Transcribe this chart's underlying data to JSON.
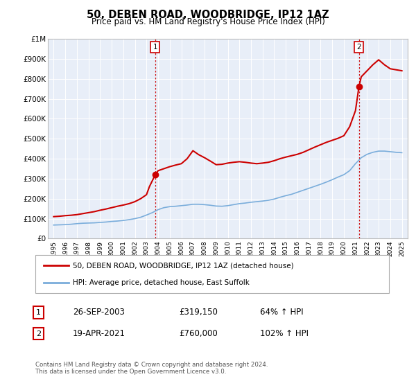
{
  "title": "50, DEBEN ROAD, WOODBRIDGE, IP12 1AZ",
  "subtitle": "Price paid vs. HM Land Registry's House Price Index (HPI)",
  "hpi_label": "HPI: Average price, detached house, East Suffolk",
  "property_label": "50, DEBEN ROAD, WOODBRIDGE, IP12 1AZ (detached house)",
  "transaction1_date": "26-SEP-2003",
  "transaction1_price": "£319,150",
  "transaction1_hpi": "64% ↑ HPI",
  "transaction2_date": "19-APR-2021",
  "transaction2_price": "£760,000",
  "transaction2_hpi": "102% ↑ HPI",
  "footer": "Contains HM Land Registry data © Crown copyright and database right 2024.\nThis data is licensed under the Open Government Licence v3.0.",
  "property_color": "#cc0000",
  "hpi_color": "#7aaddb",
  "vline_color": "#cc0000",
  "plot_bg_color": "#e8eef8",
  "transaction1_x": 2003.75,
  "transaction1_y": 319150,
  "transaction2_x": 2021.3,
  "transaction2_y": 760000,
  "ylim": [
    0,
    1000000
  ],
  "yticks": [
    0,
    100000,
    200000,
    300000,
    400000,
    500000,
    600000,
    700000,
    800000,
    900000,
    1000000
  ],
  "ytick_labels": [
    "£0",
    "£100K",
    "£200K",
    "£300K",
    "£400K",
    "£500K",
    "£600K",
    "£700K",
    "£800K",
    "£900K",
    "£1M"
  ],
  "xlim_min": 1994.5,
  "xlim_max": 2025.5,
  "hpi_x": [
    1995,
    1995.5,
    1996,
    1996.5,
    1997,
    1997.5,
    1998,
    1998.5,
    1999,
    1999.5,
    2000,
    2000.5,
    2001,
    2001.5,
    2002,
    2002.5,
    2003,
    2003.5,
    2004,
    2004.5,
    2005,
    2005.5,
    2006,
    2006.5,
    2007,
    2007.5,
    2008,
    2008.5,
    2009,
    2009.5,
    2010,
    2010.5,
    2011,
    2011.5,
    2012,
    2012.5,
    2013,
    2013.5,
    2014,
    2014.5,
    2015,
    2015.5,
    2016,
    2016.5,
    2017,
    2017.5,
    2018,
    2018.5,
    2019,
    2019.5,
    2020,
    2020.5,
    2021,
    2021.5,
    2022,
    2022.5,
    2023,
    2023.5,
    2024,
    2024.5,
    2025
  ],
  "hpi_y": [
    68000,
    69000,
    70000,
    72000,
    75000,
    77000,
    78000,
    79000,
    81000,
    83000,
    86000,
    88000,
    91000,
    95000,
    100000,
    107000,
    118000,
    130000,
    145000,
    155000,
    160000,
    162000,
    165000,
    168000,
    172000,
    172000,
    170000,
    167000,
    163000,
    162000,
    165000,
    170000,
    175000,
    178000,
    182000,
    185000,
    188000,
    192000,
    198000,
    207000,
    215000,
    222000,
    232000,
    242000,
    252000,
    262000,
    272000,
    283000,
    295000,
    308000,
    320000,
    340000,
    375000,
    405000,
    422000,
    432000,
    438000,
    438000,
    435000,
    432000,
    430000
  ],
  "prop_x": [
    1995,
    1995.5,
    1996,
    1996.5,
    1997,
    1997.5,
    1998,
    1998.5,
    1999,
    1999.5,
    2000,
    2000.5,
    2001,
    2001.5,
    2002,
    2002.5,
    2003,
    2003.25,
    2003.75,
    2004,
    2004.5,
    2005,
    2005.5,
    2006,
    2006.5,
    2007,
    2007.5,
    2008,
    2008.5,
    2009,
    2009.5,
    2010,
    2010.5,
    2011,
    2011.5,
    2012,
    2012.5,
    2013,
    2013.5,
    2014,
    2014.5,
    2015,
    2015.5,
    2016,
    2016.5,
    2017,
    2017.5,
    2018,
    2018.5,
    2019,
    2019.5,
    2020,
    2020.5,
    2021,
    2021.3,
    2021.5,
    2022,
    2022.5,
    2023,
    2023.5,
    2024,
    2024.5,
    2025
  ],
  "prop_y": [
    110000,
    112000,
    115000,
    117000,
    120000,
    125000,
    130000,
    135000,
    142000,
    148000,
    155000,
    162000,
    168000,
    175000,
    185000,
    200000,
    220000,
    260000,
    319150,
    340000,
    350000,
    360000,
    368000,
    375000,
    400000,
    440000,
    420000,
    405000,
    388000,
    370000,
    372000,
    378000,
    382000,
    385000,
    382000,
    378000,
    375000,
    378000,
    382000,
    390000,
    400000,
    408000,
    415000,
    422000,
    432000,
    445000,
    458000,
    470000,
    482000,
    492000,
    502000,
    515000,
    560000,
    640000,
    760000,
    810000,
    840000,
    870000,
    895000,
    870000,
    850000,
    845000,
    840000
  ]
}
